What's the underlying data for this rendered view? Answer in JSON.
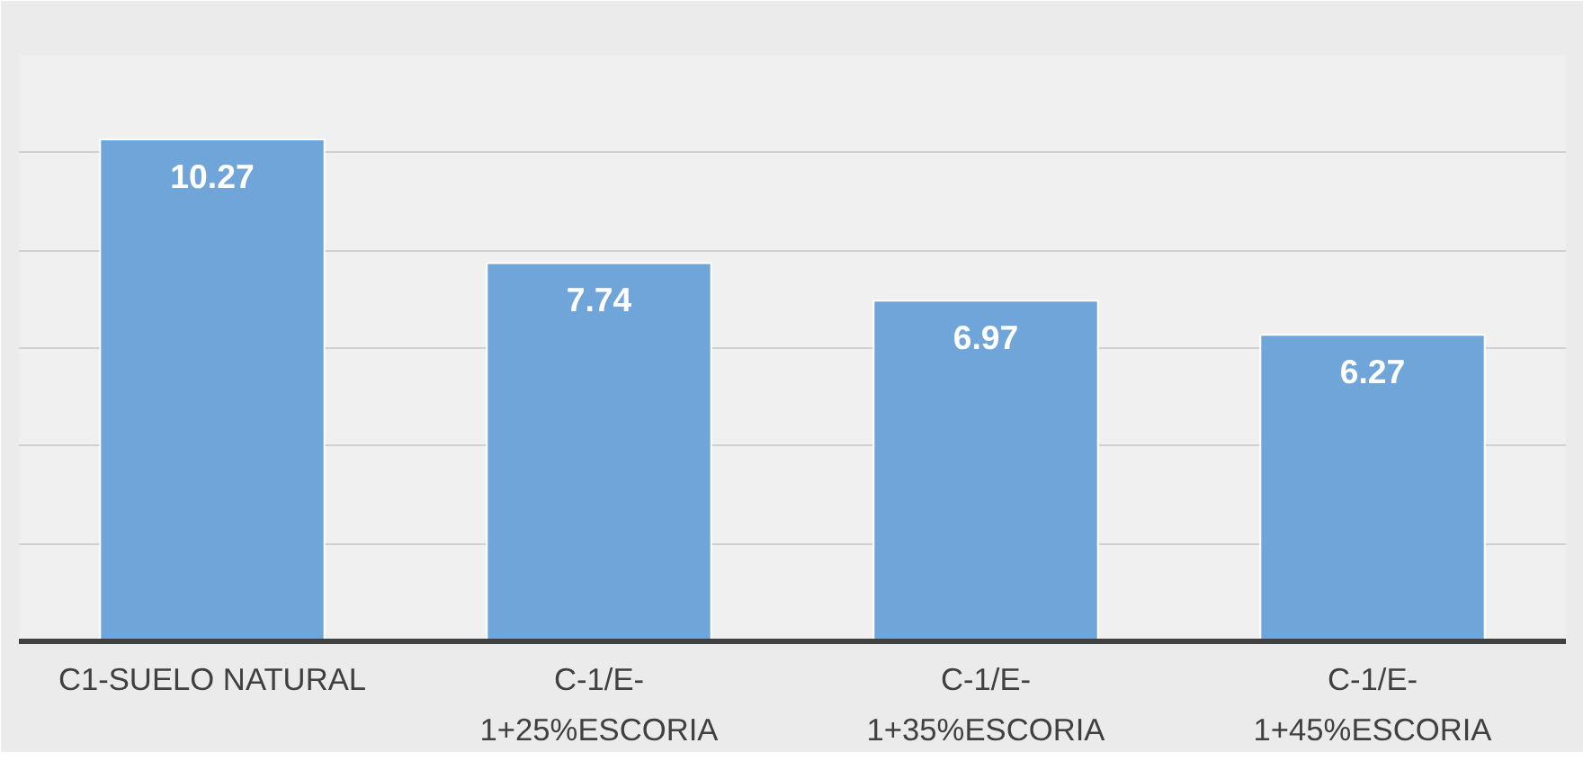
{
  "chart_data": {
    "type": "bar",
    "categories": [
      "C1-SUELO NATURAL",
      "C-1/E-1+25%ESCORIA",
      "C-1/E-1+35%ESCORIA",
      "C-1/E-1+45%ESCORIA"
    ],
    "values": [
      10.27,
      7.74,
      6.97,
      6.27
    ],
    "color": "#6fa5d9",
    "data_labels": true,
    "ylim": [
      0,
      12
    ],
    "yticks": [
      {
        "value": 0,
        "label": null
      },
      {
        "value": 2,
        "label": null
      },
      {
        "value": 4,
        "label": null
      },
      {
        "value": 6,
        "label": null
      },
      {
        "value": 8,
        "label": null
      },
      {
        "value": 10,
        "label": null
      },
      {
        "value": 12,
        "label": null
      }
    ],
    "grid": "y",
    "tick_labels": "x"
  }
}
